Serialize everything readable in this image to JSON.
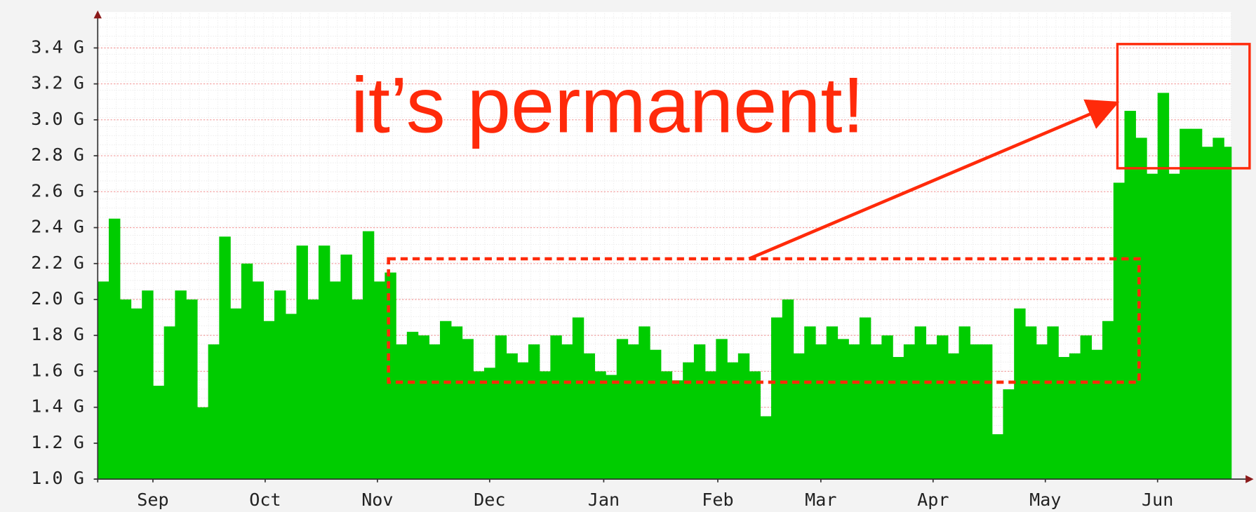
{
  "chart_data": {
    "type": "area",
    "annotation": "it’s permanent!",
    "color": "#00cc00",
    "x": [
      0,
      3,
      6,
      9,
      12,
      15,
      18,
      21,
      24,
      27,
      30,
      33,
      36,
      39,
      42,
      45,
      48,
      51,
      54,
      57,
      60,
      63,
      66,
      69,
      72,
      75,
      78,
      81,
      84,
      87,
      90,
      93,
      96,
      99,
      102,
      105,
      108,
      111,
      114,
      117,
      120,
      123,
      126,
      129,
      132,
      135,
      138,
      141,
      144,
      147,
      150,
      153,
      156,
      159,
      162,
      165,
      168,
      171,
      174,
      177,
      180,
      183,
      186,
      189,
      192,
      195,
      198,
      201,
      204,
      207,
      210,
      213,
      216,
      219,
      222,
      225,
      228,
      231,
      234,
      237,
      240,
      243,
      246,
      249,
      252,
      255,
      258,
      261,
      264,
      267,
      270,
      273,
      276,
      279,
      282,
      285,
      288,
      291,
      294,
      297,
      300,
      303,
      306
    ],
    "values": [
      2.1,
      2.45,
      2.0,
      1.95,
      2.05,
      1.52,
      1.85,
      2.05,
      2.0,
      1.4,
      1.75,
      2.35,
      1.95,
      2.2,
      2.1,
      1.88,
      2.05,
      1.92,
      2.3,
      2.0,
      2.3,
      2.1,
      2.25,
      2.0,
      2.38,
      2.1,
      2.15,
      1.75,
      1.82,
      1.8,
      1.75,
      1.88,
      1.85,
      1.78,
      1.6,
      1.62,
      1.8,
      1.7,
      1.65,
      1.75,
      1.6,
      1.8,
      1.75,
      1.9,
      1.7,
      1.6,
      1.58,
      1.78,
      1.75,
      1.85,
      1.72,
      1.6,
      1.55,
      1.65,
      1.75,
      1.6,
      1.78,
      1.65,
      1.7,
      1.6,
      1.35,
      1.9,
      2.0,
      1.7,
      1.85,
      1.75,
      1.85,
      1.78,
      1.75,
      1.9,
      1.75,
      1.8,
      1.68,
      1.75,
      1.85,
      1.75,
      1.8,
      1.7,
      1.85,
      1.75,
      1.75,
      1.25,
      1.5,
      1.95,
      1.85,
      1.75,
      1.85,
      1.68,
      1.7,
      1.8,
      1.72,
      1.88,
      2.65,
      3.05,
      2.9,
      2.7,
      3.15,
      2.7,
      2.95,
      2.95,
      2.85,
      2.9,
      2.85
    ],
    "xlim": [
      0,
      308
    ],
    "xticks": [
      {
        "value": 15,
        "label": "Sep"
      },
      {
        "value": 45.5,
        "label": "Oct"
      },
      {
        "value": 76,
        "label": "Nov"
      },
      {
        "value": 106.5,
        "label": "Dec"
      },
      {
        "value": 137.5,
        "label": "Jan"
      },
      {
        "value": 168.5,
        "label": "Feb"
      },
      {
        "value": 196.5,
        "label": "Mar"
      },
      {
        "value": 227,
        "label": "Apr"
      },
      {
        "value": 257.5,
        "label": "May"
      },
      {
        "value": 288,
        "label": "Jun"
      }
    ],
    "ylim": [
      1.0,
      3.6
    ],
    "yticks": [
      {
        "value": 1.0,
        "label": "1.0 G"
      },
      {
        "value": 1.2,
        "label": "1.2 G"
      },
      {
        "value": 1.4,
        "label": "1.4 G"
      },
      {
        "value": 1.6,
        "label": "1.6 G"
      },
      {
        "value": 1.8,
        "label": "1.8 G"
      },
      {
        "value": 2.0,
        "label": "2.0 G"
      },
      {
        "value": 2.2,
        "label": "2.2 G"
      },
      {
        "value": 2.4,
        "label": "2.4 G"
      },
      {
        "value": 2.6,
        "label": "2.6 G"
      },
      {
        "value": 2.8,
        "label": "2.8 G"
      },
      {
        "value": 3.0,
        "label": "3.0 G"
      },
      {
        "value": 3.2,
        "label": "3.2 G"
      },
      {
        "value": 3.4,
        "label": "3.4 G"
      }
    ],
    "grid": true
  }
}
